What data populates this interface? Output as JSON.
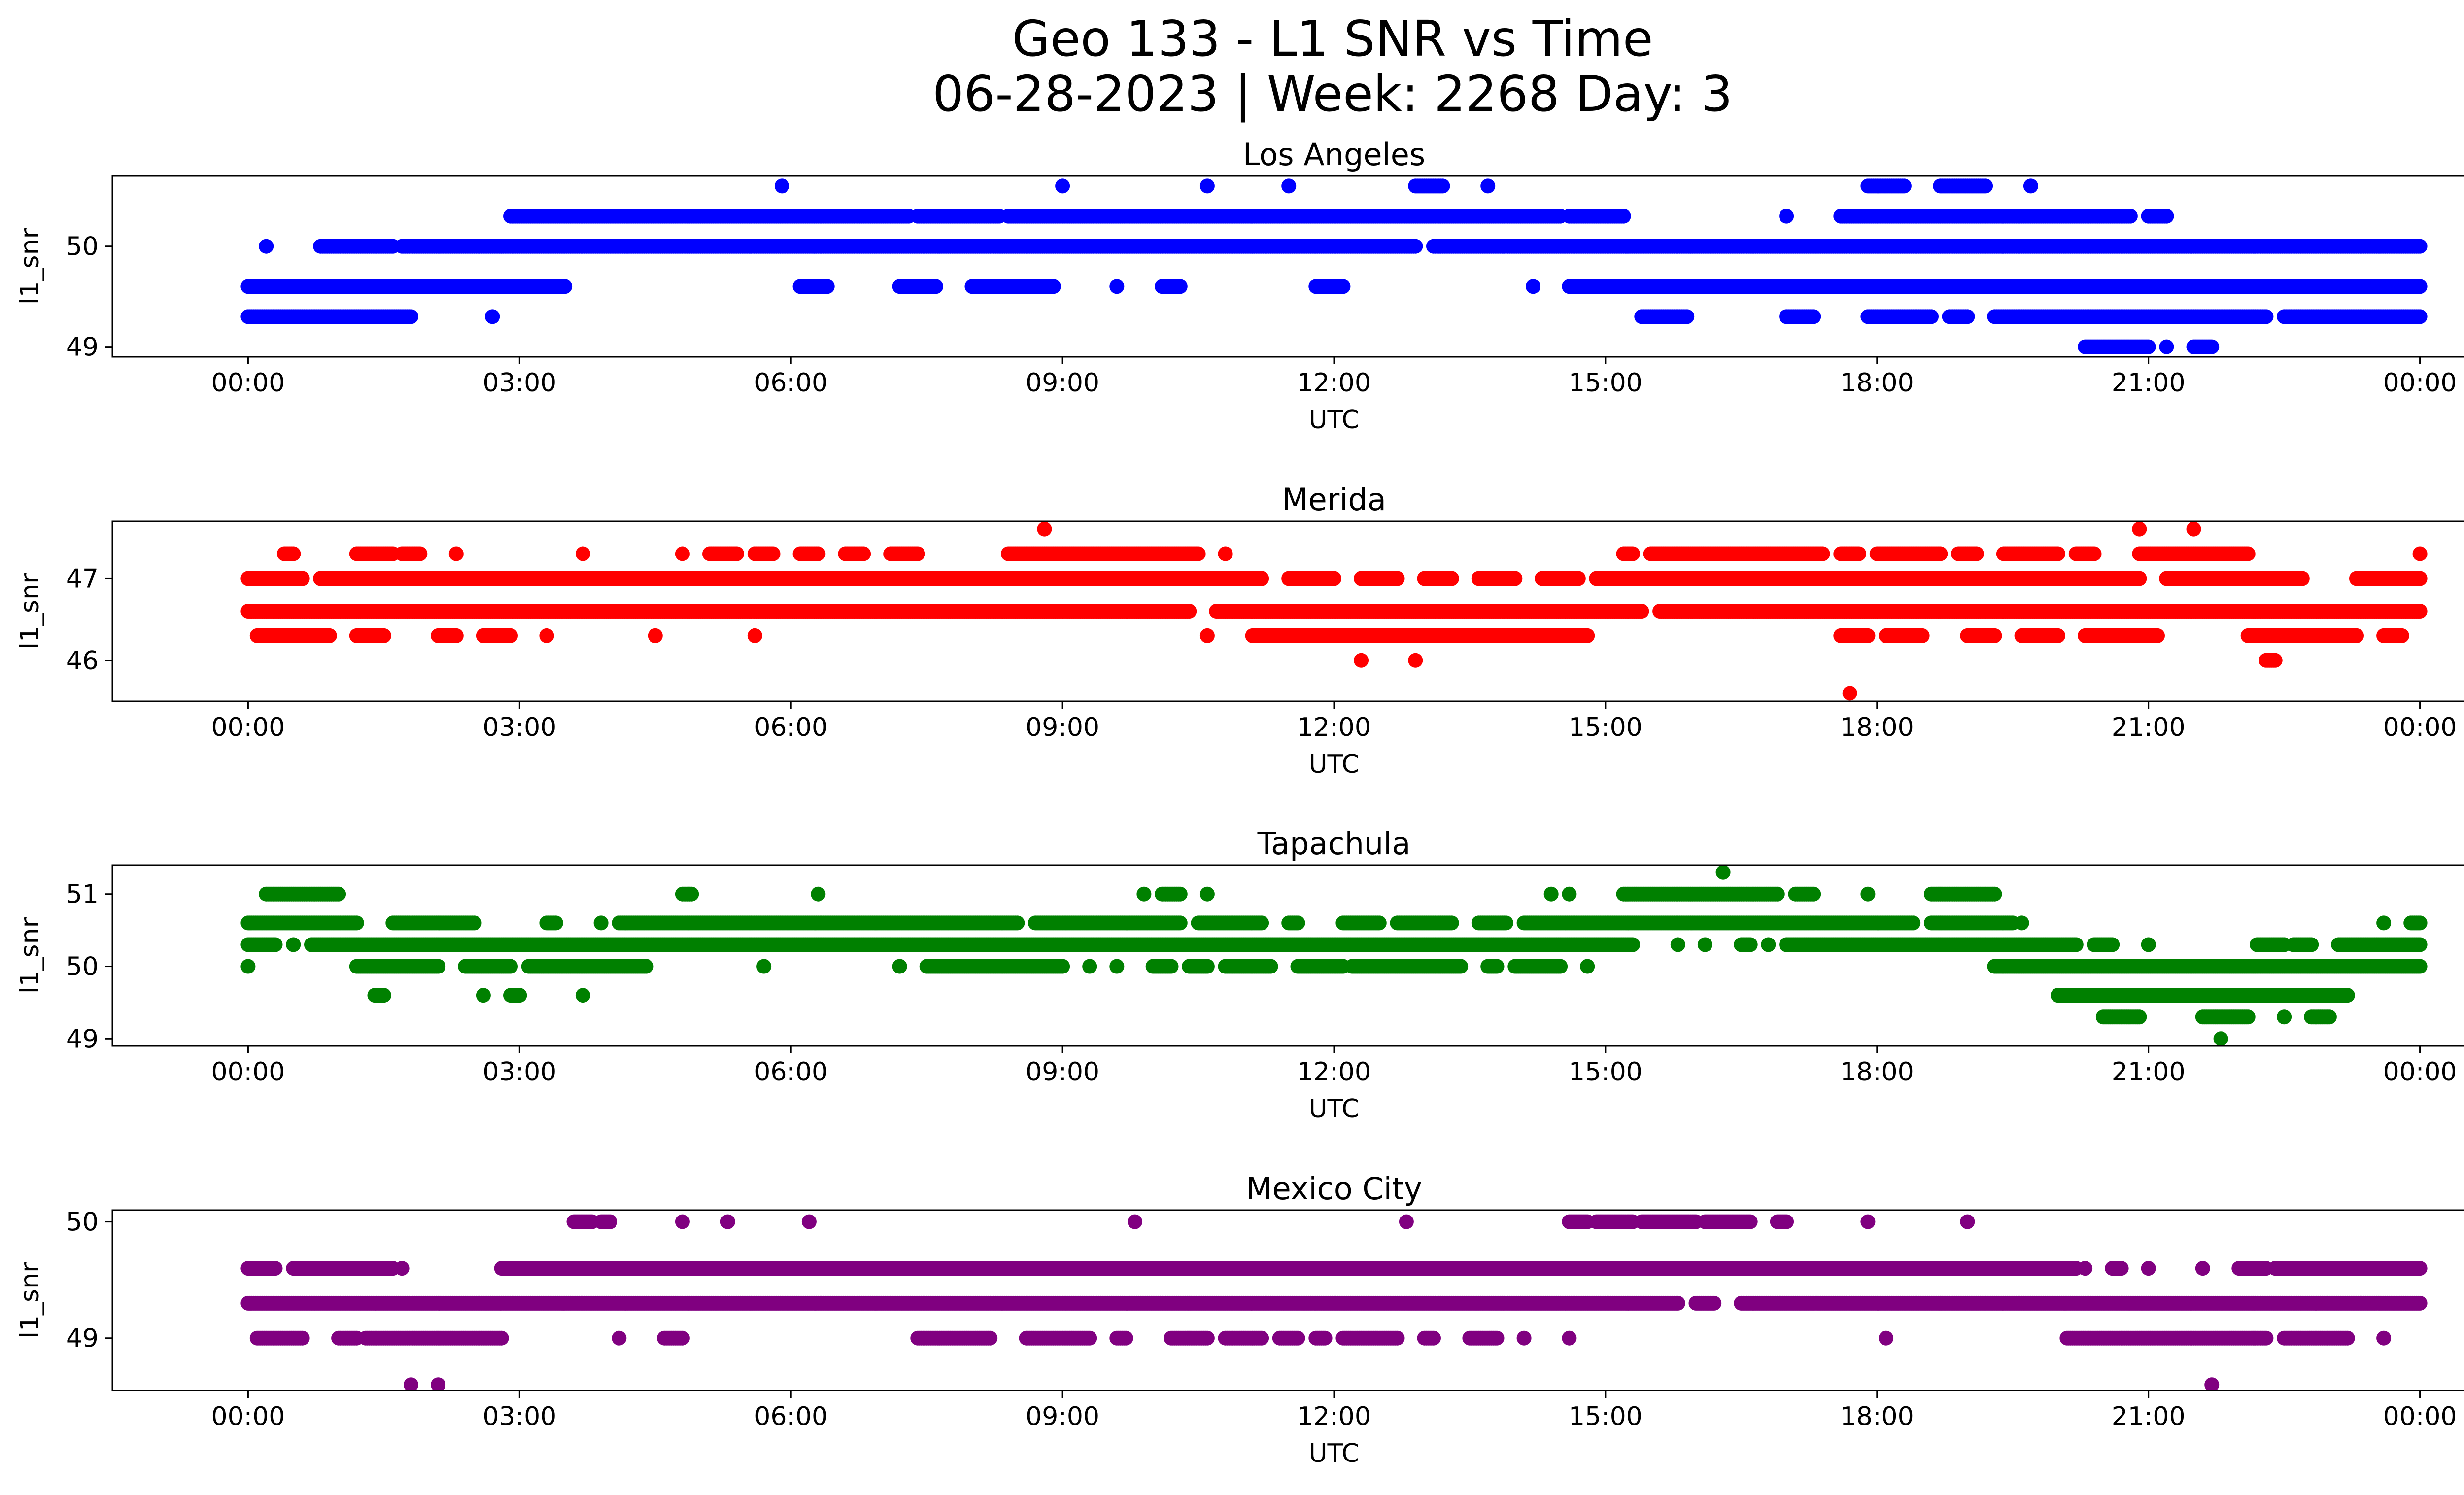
{
  "figure": {
    "title_line1": "Geo 133 - L1 SNR vs Time",
    "title_line2": "06-28-2023 | Week: 2268 Day: 3"
  },
  "chart_data": [
    {
      "type": "scatter",
      "title": "Los Angeles",
      "xlabel": "UTC",
      "ylabel": "l1_snr",
      "color": "#0000ff",
      "xlim": [
        -1.5,
        25.5
      ],
      "ylim": [
        48.9,
        50.7
      ],
      "xticks": [
        0,
        3,
        6,
        9,
        12,
        15,
        18,
        21,
        24
      ],
      "xtick_labels": [
        "00:00",
        "03:00",
        "06:00",
        "09:00",
        "12:00",
        "15:00",
        "18:00",
        "21:00",
        "00:00"
      ],
      "yticks": [
        49,
        50
      ],
      "ytick_labels": [
        "49",
        "50"
      ],
      "grid": false,
      "series": [
        {
          "y": 49.3,
          "runs": [
            [
              0.0,
              1.8
            ],
            [
              2.7,
              2.7
            ],
            [
              15.4,
              15.9
            ],
            [
              17.0,
              17.3
            ],
            [
              17.9,
              18.6
            ],
            [
              18.8,
              19.0
            ],
            [
              19.3,
              22.3
            ],
            [
              22.5,
              24.0
            ]
          ]
        },
        {
          "y": 49.6,
          "runs": [
            [
              0.0,
              3.5
            ],
            [
              6.1,
              6.4
            ],
            [
              7.2,
              7.6
            ],
            [
              8.0,
              8.9
            ],
            [
              9.6,
              9.6
            ],
            [
              10.1,
              10.3
            ],
            [
              11.8,
              12.1
            ],
            [
              14.2,
              14.2
            ],
            [
              14.6,
              24.0
            ]
          ]
        },
        {
          "y": 50.0,
          "runs": [
            [
              0.2,
              0.2
            ],
            [
              0.8,
              1.6
            ],
            [
              1.7,
              12.9
            ],
            [
              13.1,
              24.0
            ]
          ]
        },
        {
          "y": 50.3,
          "runs": [
            [
              2.9,
              7.3
            ],
            [
              7.4,
              8.3
            ],
            [
              8.4,
              14.5
            ],
            [
              14.6,
              15.2
            ],
            [
              17.0,
              17.0
            ],
            [
              17.6,
              20.8
            ],
            [
              21.0,
              21.2
            ]
          ]
        },
        {
          "y": 50.6,
          "runs": [
            [
              5.9,
              5.9
            ],
            [
              9.0,
              9.0
            ],
            [
              10.6,
              10.6
            ],
            [
              11.5,
              11.5
            ],
            [
              12.9,
              13.2
            ],
            [
              13.7,
              13.7
            ],
            [
              17.9,
              18.3
            ],
            [
              18.7,
              19.2
            ],
            [
              19.7,
              19.7
            ]
          ]
        },
        {
          "y": 49.0,
          "runs": [
            [
              20.3,
              21.0
            ],
            [
              21.2,
              21.2
            ],
            [
              21.5,
              21.7
            ]
          ]
        }
      ]
    },
    {
      "type": "scatter",
      "title": "Merida",
      "xlabel": "UTC",
      "ylabel": "l1_snr",
      "color": "#ff0000",
      "xlim": [
        -1.5,
        25.5
      ],
      "ylim": [
        45.5,
        47.7
      ],
      "xticks": [
        0,
        3,
        6,
        9,
        12,
        15,
        18,
        21,
        24
      ],
      "xtick_labels": [
        "00:00",
        "03:00",
        "06:00",
        "09:00",
        "12:00",
        "15:00",
        "18:00",
        "21:00",
        "00:00"
      ],
      "yticks": [
        46,
        47
      ],
      "ytick_labels": [
        "46",
        "47"
      ],
      "grid": false,
      "series": [
        {
          "y": 46.0,
          "runs": [
            [
              12.3,
              12.3
            ],
            [
              12.9,
              12.9
            ],
            [
              22.3,
              22.4
            ]
          ]
        },
        {
          "y": 45.6,
          "runs": [
            [
              17.7,
              17.7
            ]
          ]
        },
        {
          "y": 46.3,
          "runs": [
            [
              0.1,
              0.9
            ],
            [
              1.2,
              1.5
            ],
            [
              2.1,
              2.3
            ],
            [
              2.6,
              2.9
            ],
            [
              3.3,
              3.3
            ],
            [
              4.5,
              4.5
            ],
            [
              5.6,
              5.6
            ],
            [
              10.6,
              10.6
            ],
            [
              11.1,
              14.8
            ],
            [
              17.6,
              17.9
            ],
            [
              18.1,
              18.5
            ],
            [
              19.0,
              19.3
            ],
            [
              19.6,
              20.0
            ],
            [
              20.3,
              21.1
            ],
            [
              22.1,
              23.3
            ],
            [
              23.6,
              23.8
            ]
          ]
        },
        {
          "y": 46.6,
          "runs": [
            [
              0.0,
              10.4
            ],
            [
              10.7,
              15.4
            ],
            [
              15.6,
              24.0
            ]
          ]
        },
        {
          "y": 47.0,
          "runs": [
            [
              0.0,
              0.6
            ],
            [
              0.8,
              11.2
            ],
            [
              11.5,
              12.0
            ],
            [
              12.3,
              12.7
            ],
            [
              13.0,
              13.3
            ],
            [
              13.6,
              14.0
            ],
            [
              14.3,
              14.7
            ],
            [
              14.9,
              20.9
            ],
            [
              21.2,
              22.7
            ],
            [
              23.3,
              24.0
            ]
          ]
        },
        {
          "y": 47.3,
          "runs": [
            [
              0.4,
              0.5
            ],
            [
              1.2,
              1.6
            ],
            [
              1.7,
              1.9
            ],
            [
              2.3,
              2.3
            ],
            [
              3.7,
              3.7
            ],
            [
              4.8,
              4.8
            ],
            [
              5.1,
              5.4
            ],
            [
              5.6,
              5.8
            ],
            [
              6.1,
              6.3
            ],
            [
              6.6,
              6.8
            ],
            [
              7.1,
              7.4
            ],
            [
              8.4,
              10.5
            ],
            [
              10.8,
              10.8
            ],
            [
              15.2,
              15.3
            ],
            [
              15.5,
              17.4
            ],
            [
              17.6,
              17.8
            ],
            [
              18.0,
              18.7
            ],
            [
              18.9,
              19.1
            ],
            [
              19.4,
              20.0
            ],
            [
              20.2,
              20.4
            ],
            [
              20.9,
              22.1
            ],
            [
              24.0,
              24.0
            ]
          ]
        },
        {
          "y": 47.6,
          "runs": [
            [
              8.8,
              8.8
            ],
            [
              20.9,
              20.9
            ],
            [
              21.5,
              21.5
            ]
          ]
        }
      ]
    },
    {
      "type": "scatter",
      "title": "Tapachula",
      "xlabel": "UTC",
      "ylabel": "l1_snr",
      "color": "#008000",
      "xlim": [
        -1.5,
        25.5
      ],
      "ylim": [
        48.9,
        51.4
      ],
      "xticks": [
        0,
        3,
        6,
        9,
        12,
        15,
        18,
        21,
        24
      ],
      "xtick_labels": [
        "00:00",
        "03:00",
        "06:00",
        "09:00",
        "12:00",
        "15:00",
        "18:00",
        "21:00",
        "00:00"
      ],
      "yticks": [
        49,
        50,
        51
      ],
      "ytick_labels": [
        "49",
        "50",
        "51"
      ],
      "grid": false,
      "series": [
        {
          "y": 49.0,
          "runs": [
            [
              21.8,
              21.8
            ]
          ]
        },
        {
          "y": 49.3,
          "runs": [
            [
              20.5,
              20.9
            ],
            [
              21.6,
              22.1
            ],
            [
              22.5,
              22.5
            ],
            [
              22.8,
              23.0
            ]
          ]
        },
        {
          "y": 49.6,
          "runs": [
            [
              1.4,
              1.5
            ],
            [
              2.6,
              2.6
            ],
            [
              2.9,
              3.0
            ],
            [
              3.7,
              3.7
            ],
            [
              20.0,
              23.2
            ]
          ]
        },
        {
          "y": 50.0,
          "runs": [
            [
              0.0,
              0.0
            ],
            [
              1.2,
              2.1
            ],
            [
              2.4,
              2.9
            ],
            [
              3.1,
              4.4
            ],
            [
              5.7,
              5.7
            ],
            [
              7.2,
              7.2
            ],
            [
              7.5,
              9.0
            ],
            [
              9.3,
              9.3
            ],
            [
              9.6,
              9.6
            ],
            [
              10.0,
              10.2
            ],
            [
              10.4,
              10.6
            ],
            [
              10.8,
              11.3
            ],
            [
              11.6,
              12.1
            ],
            [
              12.2,
              13.4
            ],
            [
              13.7,
              13.8
            ],
            [
              14.0,
              14.5
            ],
            [
              14.8,
              14.8
            ],
            [
              19.3,
              24.0
            ]
          ]
        },
        {
          "y": 50.3,
          "runs": [
            [
              0.0,
              0.3
            ],
            [
              0.5,
              0.5
            ],
            [
              0.7,
              15.3
            ],
            [
              15.8,
              15.8
            ],
            [
              16.1,
              16.1
            ],
            [
              16.5,
              16.6
            ],
            [
              16.8,
              16.8
            ],
            [
              17.0,
              20.2
            ],
            [
              20.4,
              20.6
            ],
            [
              21.0,
              21.0
            ],
            [
              22.2,
              22.5
            ],
            [
              22.6,
              22.8
            ],
            [
              23.1,
              24.0
            ]
          ]
        },
        {
          "y": 50.6,
          "runs": [
            [
              0.0,
              1.2
            ],
            [
              1.6,
              2.5
            ],
            [
              3.3,
              3.4
            ],
            [
              3.9,
              3.9
            ],
            [
              4.1,
              8.5
            ],
            [
              8.7,
              10.3
            ],
            [
              10.5,
              11.2
            ],
            [
              11.5,
              11.6
            ],
            [
              12.1,
              12.5
            ],
            [
              12.7,
              13.3
            ],
            [
              13.6,
              13.9
            ],
            [
              14.1,
              18.4
            ],
            [
              18.6,
              19.5
            ],
            [
              19.6,
              19.6
            ],
            [
              23.6,
              23.6
            ],
            [
              23.9,
              24.0
            ]
          ]
        },
        {
          "y": 51.0,
          "runs": [
            [
              0.2,
              1.0
            ],
            [
              4.8,
              4.9
            ],
            [
              6.3,
              6.3
            ],
            [
              9.9,
              9.9
            ],
            [
              10.1,
              10.3
            ],
            [
              10.6,
              10.6
            ],
            [
              14.4,
              14.4
            ],
            [
              14.6,
              14.6
            ],
            [
              15.2,
              16.9
            ],
            [
              17.1,
              17.3
            ],
            [
              17.9,
              17.9
            ],
            [
              18.6,
              19.3
            ]
          ]
        },
        {
          "y": 51.3,
          "runs": [
            [
              16.3,
              16.3
            ]
          ]
        }
      ]
    },
    {
      "type": "scatter",
      "title": "Mexico City",
      "xlabel": "UTC",
      "ylabel": "l1_snr",
      "color": "#800080",
      "xlim": [
        -1.5,
        25.5
      ],
      "ylim": [
        48.55,
        50.1
      ],
      "xticks": [
        0,
        3,
        6,
        9,
        12,
        15,
        18,
        21,
        24
      ],
      "xtick_labels": [
        "00:00",
        "03:00",
        "06:00",
        "09:00",
        "12:00",
        "15:00",
        "18:00",
        "21:00",
        "00:00"
      ],
      "yticks": [
        49,
        50
      ],
      "ytick_labels": [
        "49",
        "50"
      ],
      "grid": false,
      "series": [
        {
          "y": 48.6,
          "runs": [
            [
              1.8,
              1.8
            ],
            [
              2.1,
              2.1
            ],
            [
              21.7,
              21.7
            ]
          ]
        },
        {
          "y": 49.0,
          "runs": [
            [
              0.1,
              0.6
            ],
            [
              1.0,
              1.2
            ],
            [
              1.3,
              2.8
            ],
            [
              4.1,
              4.1
            ],
            [
              4.6,
              4.8
            ],
            [
              7.4,
              8.2
            ],
            [
              8.6,
              9.3
            ],
            [
              9.6,
              9.7
            ],
            [
              10.2,
              10.6
            ],
            [
              10.8,
              11.2
            ],
            [
              11.4,
              11.6
            ],
            [
              11.8,
              11.9
            ],
            [
              12.1,
              12.7
            ],
            [
              13.0,
              13.1
            ],
            [
              13.5,
              13.8
            ],
            [
              14.1,
              14.1
            ],
            [
              14.6,
              14.6
            ],
            [
              18.1,
              18.1
            ],
            [
              20.1,
              22.3
            ],
            [
              22.5,
              23.2
            ],
            [
              23.6,
              23.6
            ]
          ]
        },
        {
          "y": 49.3,
          "runs": [
            [
              0.0,
              15.8
            ],
            [
              16.0,
              16.2
            ],
            [
              16.5,
              24.0
            ]
          ]
        },
        {
          "y": 49.6,
          "runs": [
            [
              0.0,
              0.3
            ],
            [
              0.5,
              1.6
            ],
            [
              1.7,
              1.7
            ],
            [
              2.8,
              20.2
            ],
            [
              20.3,
              20.3
            ],
            [
              20.6,
              20.7
            ],
            [
              21.0,
              21.0
            ],
            [
              21.6,
              21.6
            ],
            [
              22.0,
              22.3
            ],
            [
              22.4,
              24.0
            ]
          ]
        },
        {
          "y": 50.0,
          "runs": [
            [
              3.6,
              3.8
            ],
            [
              3.9,
              4.0
            ],
            [
              4.8,
              4.8
            ],
            [
              5.3,
              5.3
            ],
            [
              6.2,
              6.2
            ],
            [
              9.8,
              9.8
            ],
            [
              12.8,
              12.8
            ],
            [
              14.6,
              14.8
            ],
            [
              14.9,
              15.3
            ],
            [
              15.4,
              16.0
            ],
            [
              16.1,
              16.6
            ],
            [
              16.9,
              17.0
            ],
            [
              17.9,
              17.9
            ],
            [
              19.0,
              19.0
            ]
          ]
        }
      ]
    }
  ]
}
